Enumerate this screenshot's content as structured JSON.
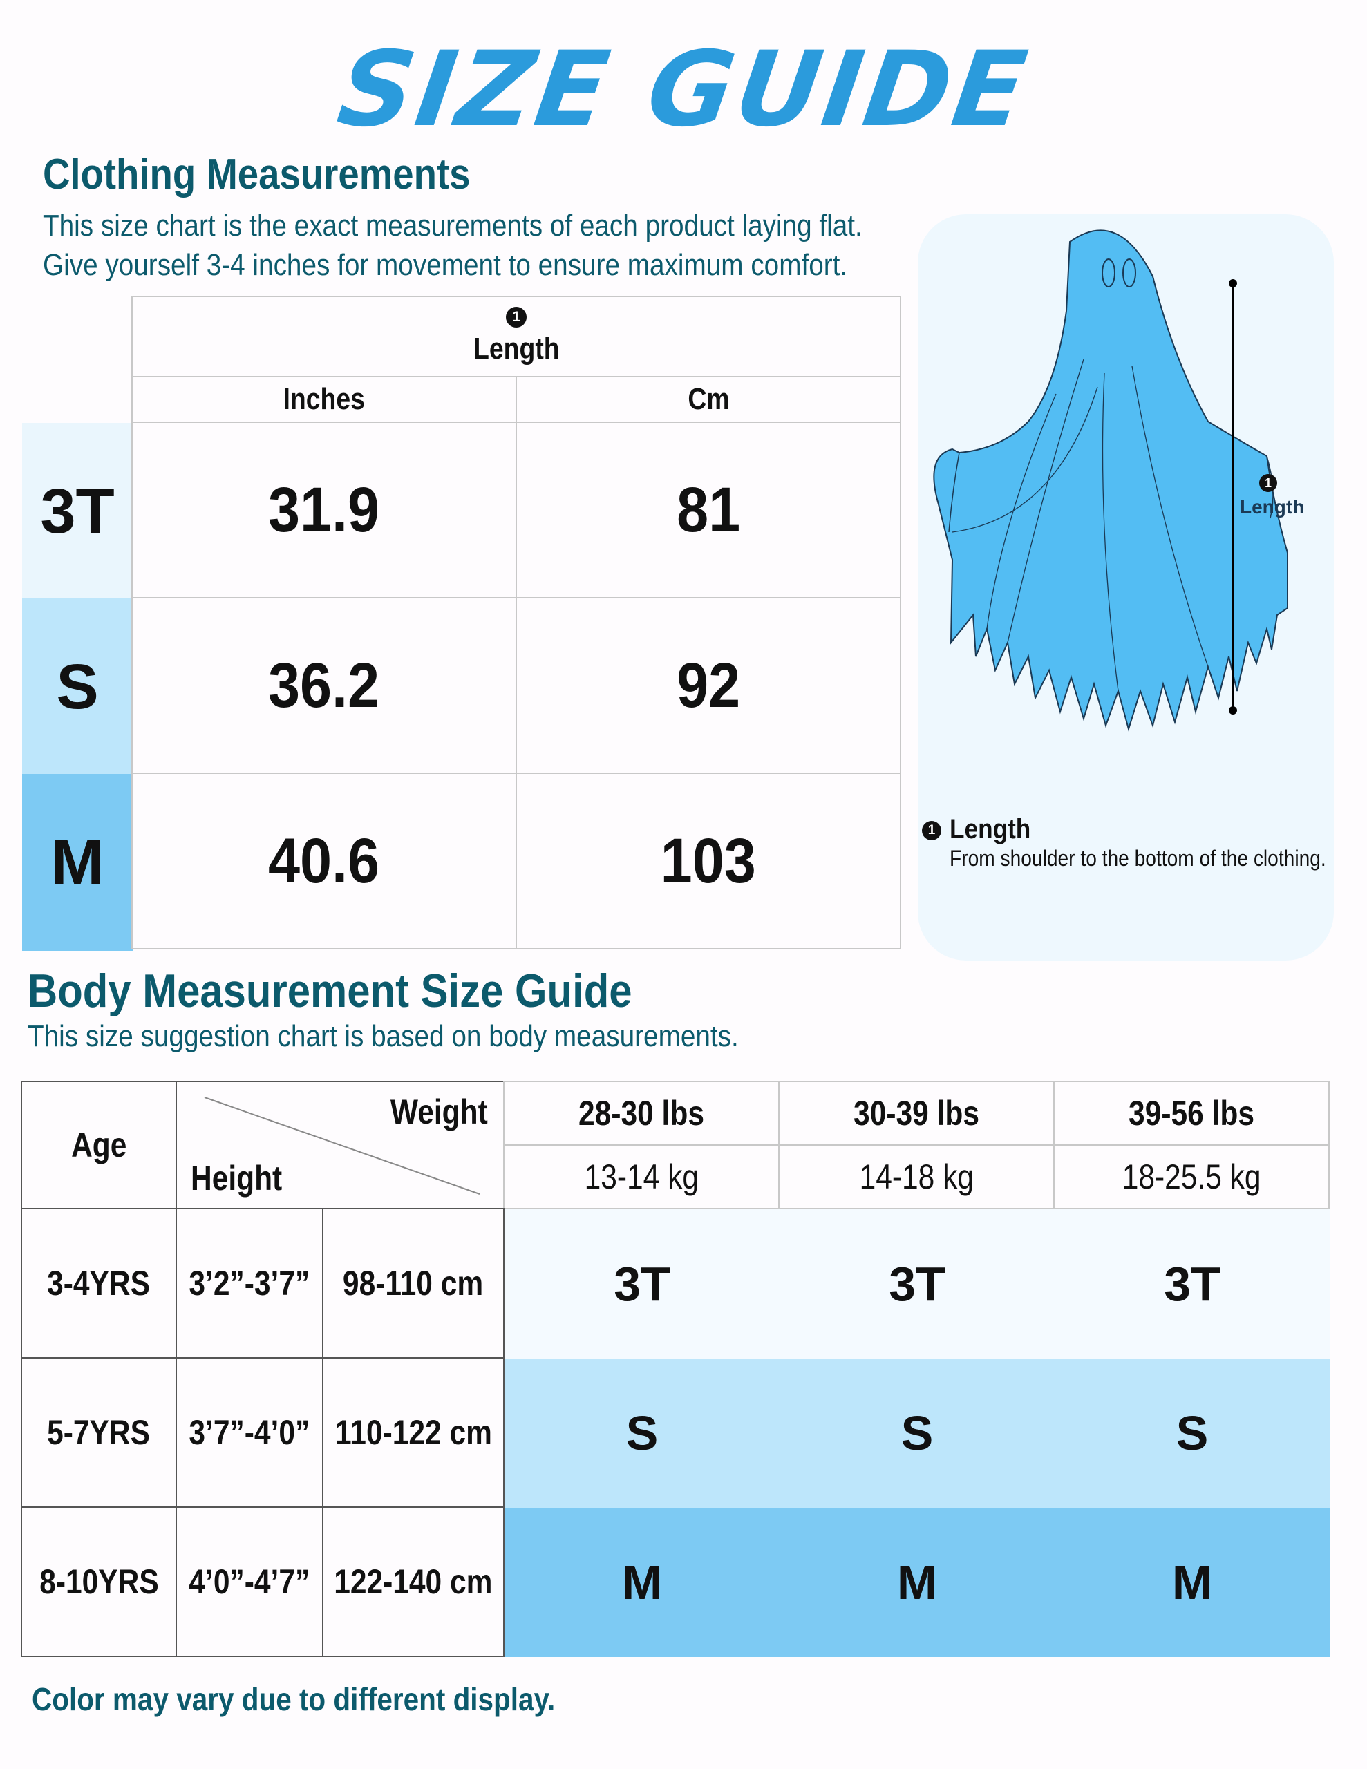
{
  "title": "SIZE GUIDE",
  "clothing": {
    "heading": "Clothing Measurements",
    "desc_line1": "This size chart is the exact measurements of each product laying flat.",
    "desc_line2": "Give yourself 3-4 inches for movement to ensure maximum comfort.",
    "marker": "1",
    "measure_label": "Length",
    "unit_inches": "Inches",
    "unit_cm": "Cm",
    "rows": [
      {
        "size": "3T",
        "inches": "31.9",
        "cm": "81"
      },
      {
        "size": "S",
        "inches": "36.2",
        "cm": "92"
      },
      {
        "size": "M",
        "inches": "40.6",
        "cm": "103"
      }
    ]
  },
  "diagram": {
    "marker": "1",
    "label": "Length",
    "legend_label": "Length",
    "legend_desc": "From shoulder to the bottom of the clothing."
  },
  "body": {
    "heading": "Body Measurement Size Guide",
    "desc": "This size suggestion chart is based on body measurements.",
    "age_header": "Age",
    "weight_header": "Weight",
    "height_header": "Height",
    "weights": [
      {
        "lbs": "28-30 lbs",
        "kg": "13-14 kg"
      },
      {
        "lbs": "30-39 lbs",
        "kg": "14-18 kg"
      },
      {
        "lbs": "39-56 lbs",
        "kg": "18-25.5 kg"
      }
    ],
    "rows": [
      {
        "age": "3-4YRS",
        "height_ft": "3’2”-3’7”",
        "height_cm": "98-110 cm",
        "sizes": [
          "3T",
          "3T",
          "3T"
        ]
      },
      {
        "age": "5-7YRS",
        "height_ft": "3’7”-4’0”",
        "height_cm": "110-122 cm",
        "sizes": [
          "S",
          "S",
          "S"
        ]
      },
      {
        "age": "8-10YRS",
        "height_ft": "4’0”-4’7”",
        "height_cm": "122-140 cm",
        "sizes": [
          "M",
          "M",
          "M"
        ]
      }
    ]
  },
  "footer": "Color may vary due to different display.",
  "colors": {
    "title": "#2b9bdc",
    "heading": "#0c5a6c",
    "row_3t": "#eaf6fd",
    "row_s": "#bde6fb",
    "row_m": "#7dcaf3",
    "ghost": "#53bdf3"
  }
}
